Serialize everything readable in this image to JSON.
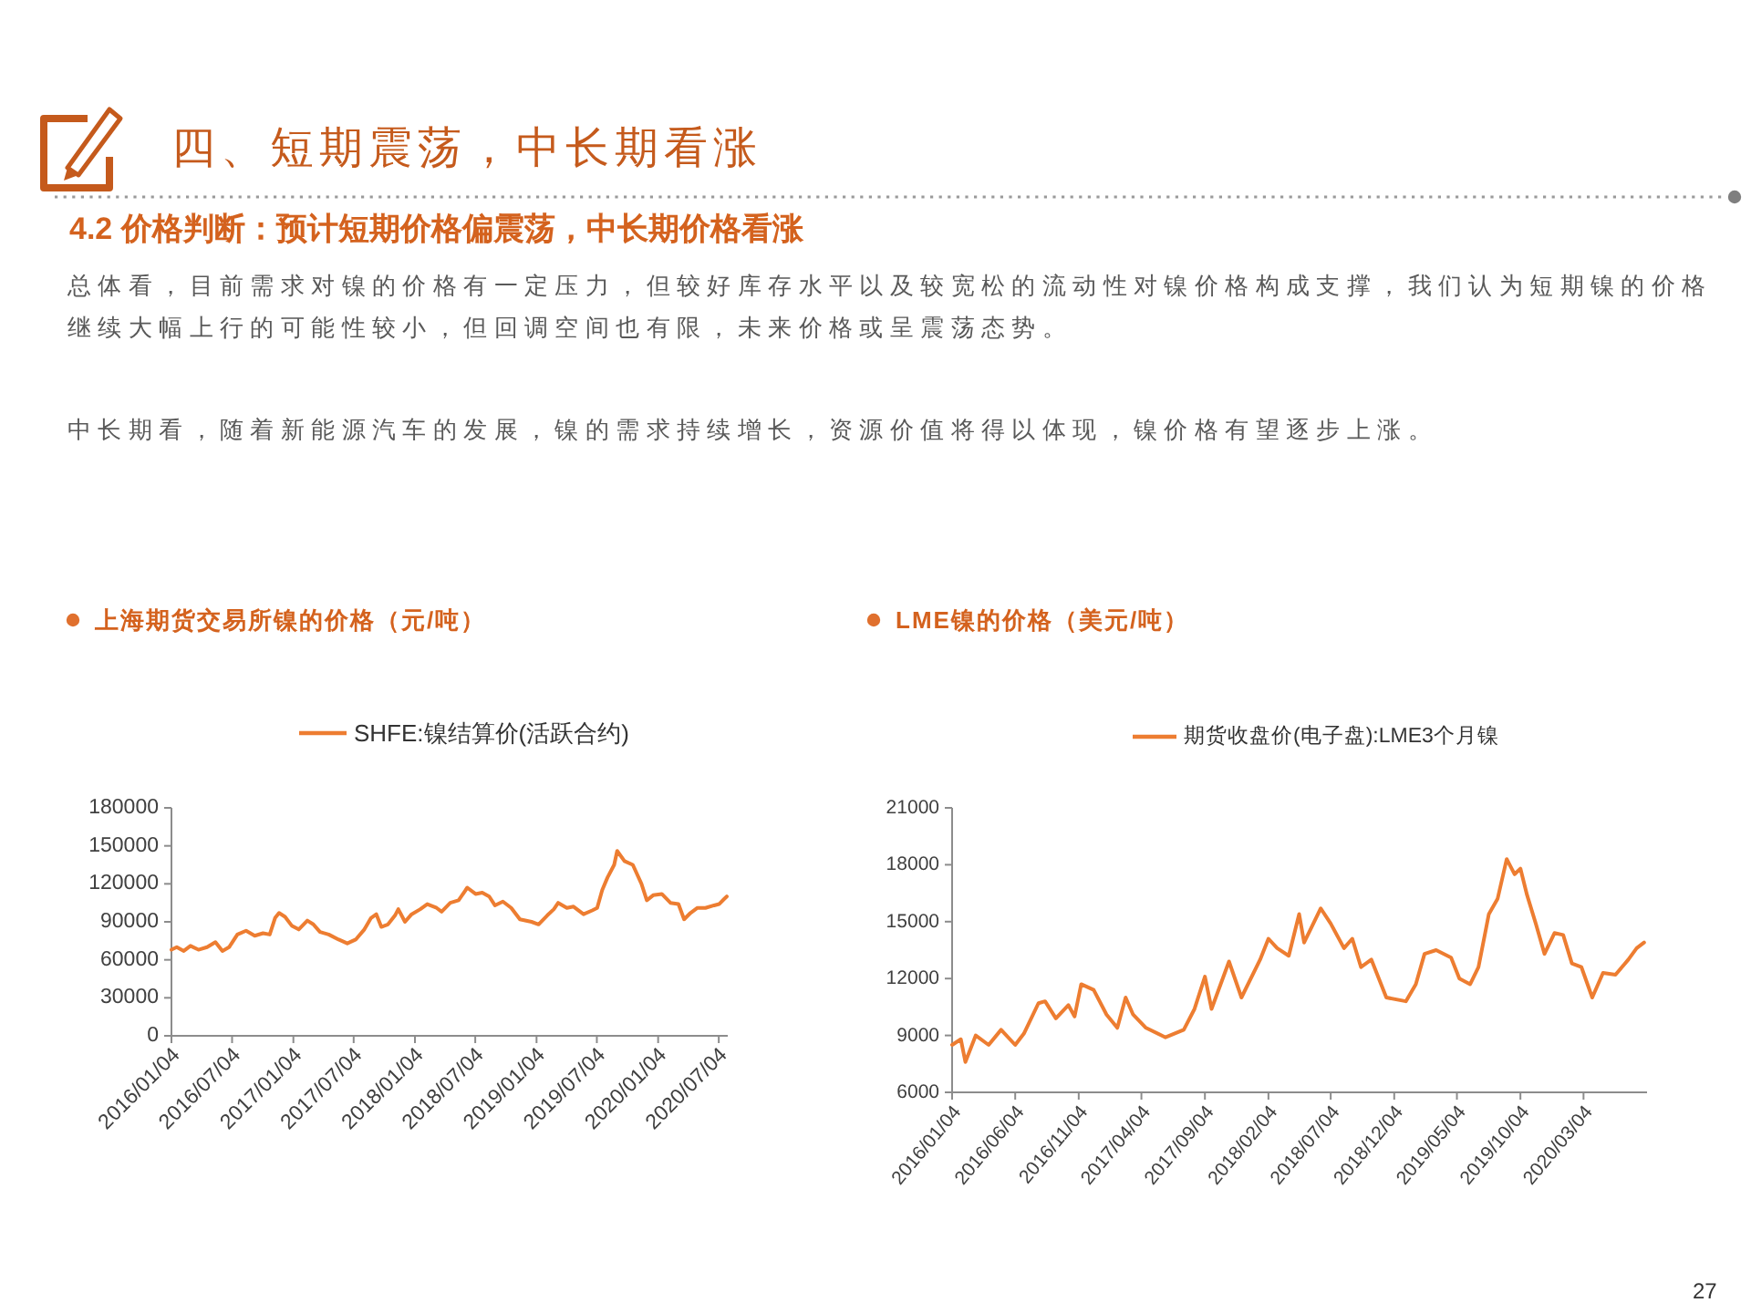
{
  "chart_data": [
    {
      "type": "other",
      "title": "四、短期震荡，中长期看涨",
      "subtitle": "4.2 价格判断：预计短期价格偏震荡，中长期价格看涨",
      "annotations": [
        "总体看，目前需求对镍的价格有一定压力，但较好库存水平以及较宽松的流动性对镍价格构成支撑，我们认为短期镍的价格继续大幅上行的可能性较小，但回调空间也有限，未来价格或呈震荡态势。",
        "中长期看，随着新能源汽车的发展，镍的需求持续增长，资源价值将得以体现，镍价格有望逐步上涨。",
        "27"
      ]
    },
    {
      "type": "line",
      "title": "上海期货交易所镍的价格（元/吨）",
      "legend": "top",
      "x": [
        "2016-01-04",
        "2016-01-20",
        "2016-02-10",
        "2016-03-01",
        "2016-03-25",
        "2016-04-20",
        "2016-05-15",
        "2016-06-05",
        "2016-06-25",
        "2016-07-20",
        "2016-08-15",
        "2016-09-10",
        "2016-10-05",
        "2016-10-25",
        "2016-11-10",
        "2016-11-22",
        "2016-12-10",
        "2016-12-30",
        "2017-01-20",
        "2017-02-15",
        "2017-03-05",
        "2017-03-25",
        "2017-04-20",
        "2017-05-20",
        "2017-06-15",
        "2017-07-10",
        "2017-08-05",
        "2017-08-25",
        "2017-09-10",
        "2017-09-25",
        "2017-10-15",
        "2017-11-05",
        "2017-11-15",
        "2017-12-05",
        "2017-12-25",
        "2018-01-20",
        "2018-02-10",
        "2018-03-10",
        "2018-03-25",
        "2018-04-20",
        "2018-05-15",
        "2018-06-10",
        "2018-07-05",
        "2018-07-25",
        "2018-08-15",
        "2018-09-01",
        "2018-09-25",
        "2018-10-20",
        "2018-11-15",
        "2018-12-20",
        "2019-01-10",
        "2019-02-05",
        "2019-02-25",
        "2019-03-10",
        "2019-04-05",
        "2019-04-25",
        "2019-05-25",
        "2019-06-20",
        "2019-07-05",
        "2019-07-20",
        "2019-08-05",
        "2019-08-25",
        "2019-09-03",
        "2019-09-25",
        "2019-10-20",
        "2019-11-15",
        "2019-12-01",
        "2019-12-20",
        "2020-01-15",
        "2020-02-10",
        "2020-03-05",
        "2020-03-22",
        "2020-04-10",
        "2020-05-01",
        "2020-05-25",
        "2020-06-20",
        "2020-07-05",
        "2020-07-20",
        "2020-07-28"
      ],
      "series": [
        {
          "name": "SHFE:镍结算价(活跃合约)",
          "color": "#ed7d31",
          "values": [
            68000,
            70000,
            67000,
            71000,
            68000,
            70000,
            74000,
            67000,
            70000,
            80000,
            83000,
            79000,
            81000,
            80000,
            93000,
            97000,
            94000,
            87000,
            84000,
            91000,
            88000,
            82000,
            80000,
            76000,
            73000,
            76000,
            84000,
            93000,
            96000,
            86000,
            88000,
            95000,
            100000,
            90000,
            96000,
            100000,
            104000,
            101000,
            98000,
            105000,
            107000,
            117000,
            112000,
            113000,
            110000,
            103000,
            106000,
            101000,
            92000,
            90000,
            88000,
            95000,
            100000,
            105000,
            101000,
            102000,
            96000,
            99000,
            101000,
            115000,
            125000,
            135000,
            146000,
            138000,
            135000,
            120000,
            107000,
            111000,
            112000,
            105000,
            104000,
            92000,
            97000,
            101000,
            101000,
            103000,
            104000,
            108000,
            110000
          ]
        }
      ],
      "xlim": [
        "2016-01-04",
        "2020-07-31"
      ],
      "xticks": [
        {
          "value": "2016-01-04",
          "label": "2016/01/04"
        },
        {
          "value": "2016-07-04",
          "label": "2016/07/04"
        },
        {
          "value": "2017-01-04",
          "label": "2017/01/04"
        },
        {
          "value": "2017-07-04",
          "label": "2017/07/04"
        },
        {
          "value": "2018-01-04",
          "label": "2018/01/04"
        },
        {
          "value": "2018-07-04",
          "label": "2018/07/04"
        },
        {
          "value": "2019-01-04",
          "label": "2019/01/04"
        },
        {
          "value": "2019-07-04",
          "label": "2019/07/04"
        },
        {
          "value": "2020-01-04",
          "label": "2020/01/04"
        },
        {
          "value": "2020-07-04",
          "label": "2020/07/04"
        }
      ],
      "ylim": [
        0,
        180000
      ],
      "yticks": [
        0,
        30000,
        60000,
        90000,
        120000,
        150000,
        180000
      ]
    },
    {
      "type": "line",
      "title": "LME镍的价格（美元/吨）",
      "legend": "top",
      "x": [
        "2016-01-04",
        "2016-01-25",
        "2016-02-05",
        "2016-03-01",
        "2016-04-01",
        "2016-05-01",
        "2016-06-04",
        "2016-06-25",
        "2016-07-30",
        "2016-08-15",
        "2016-09-10",
        "2016-10-10",
        "2016-10-25",
        "2016-11-10",
        "2016-12-10",
        "2017-01-10",
        "2017-02-05",
        "2017-02-25",
        "2017-03-15",
        "2017-04-15",
        "2017-06-01",
        "2017-07-15",
        "2017-08-10",
        "2017-09-04",
        "2017-09-20",
        "2017-11-01",
        "2017-12-01",
        "2018-01-15",
        "2018-02-04",
        "2018-02-25",
        "2018-03-25",
        "2018-04-19",
        "2018-05-01",
        "2018-06-10",
        "2018-07-04",
        "2018-08-05",
        "2018-08-25",
        "2018-09-15",
        "2018-10-10",
        "2018-11-15",
        "2019-01-01",
        "2019-01-25",
        "2019-02-15",
        "2019-03-15",
        "2019-04-20",
        "2019-05-10",
        "2019-06-05",
        "2019-06-25",
        "2019-07-20",
        "2019-08-10",
        "2019-09-01",
        "2019-09-20",
        "2019-10-04",
        "2019-10-20",
        "2019-11-10",
        "2019-12-01",
        "2019-12-25",
        "2020-01-15",
        "2020-02-05",
        "2020-02-28",
        "2020-03-25",
        "2020-04-20",
        "2020-05-20",
        "2020-06-20",
        "2020-07-10",
        "2020-07-28"
      ],
      "series": [
        {
          "name": "期货收盘价(电子盘):LME3个月镍",
          "color": "#ed7d31",
          "values": [
            8500,
            8800,
            7600,
            9000,
            8500,
            9300,
            8500,
            9100,
            10700,
            10800,
            9900,
            10600,
            10000,
            11700,
            11400,
            10100,
            9400,
            11000,
            10100,
            9400,
            8900,
            9300,
            10400,
            12100,
            10400,
            12900,
            11000,
            13000,
            14100,
            13600,
            13200,
            15400,
            13900,
            15700,
            14900,
            13600,
            14100,
            12600,
            13000,
            11000,
            10800,
            11700,
            13300,
            13500,
            13100,
            12000,
            11700,
            12600,
            15400,
            16200,
            18300,
            17500,
            17800,
            16400,
            14900,
            13300,
            14400,
            14300,
            12800,
            12600,
            11000,
            12300,
            12200,
            13000,
            13600,
            13900
          ]
        }
      ],
      "xlim": [
        "2016-01-04",
        "2020-08-04"
      ],
      "xticks": [
        {
          "value": "2016-01-04",
          "label": "2016/01/04"
        },
        {
          "value": "2016-06-04",
          "label": "2016/06/04"
        },
        {
          "value": "2016-11-04",
          "label": "2016/11/04"
        },
        {
          "value": "2017-04-04",
          "label": "2017/04/04"
        },
        {
          "value": "2017-09-04",
          "label": "2017/09/04"
        },
        {
          "value": "2018-02-04",
          "label": "2018/02/04"
        },
        {
          "value": "2018-07-04",
          "label": "2018/07/04"
        },
        {
          "value": "2018-12-04",
          "label": "2018/12/04"
        },
        {
          "value": "2019-05-04",
          "label": "2019/05/04"
        },
        {
          "value": "2019-10-04",
          "label": "2019/10/04"
        },
        {
          "value": "2020-03-04",
          "label": "2020/03/04"
        }
      ],
      "ylim": [
        6000,
        21000
      ],
      "yticks": [
        6000,
        9000,
        12000,
        15000,
        18000,
        21000
      ]
    }
  ]
}
